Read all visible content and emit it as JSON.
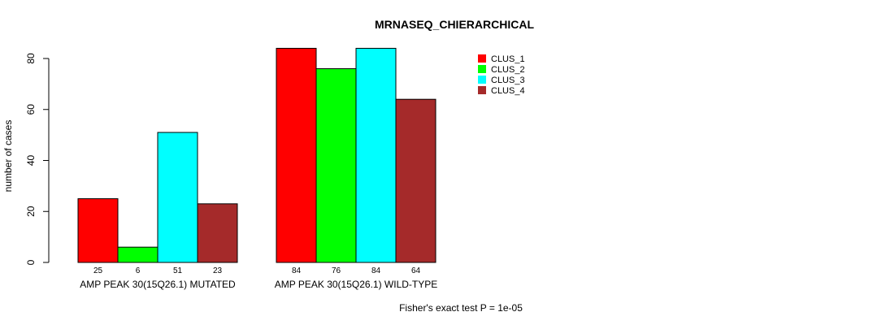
{
  "chart_data": {
    "type": "bar",
    "title": "MRNASEQ_CHIERARCHICAL",
    "ylabel": "number of cases",
    "xlabel": "",
    "ylim": [
      0,
      80
    ],
    "yticks": [
      "0",
      "20",
      "40",
      "60",
      "80"
    ],
    "categories": [
      "AMP PEAK 30(15Q26.1) MUTATED",
      "AMP PEAK 30(15Q26.1) WILD-TYPE"
    ],
    "series": [
      {
        "name": "CLUS_1",
        "color": "#ff0000",
        "values": [
          25,
          84
        ]
      },
      {
        "name": "CLUS_2",
        "color": "#00ff00",
        "values": [
          6,
          76
        ]
      },
      {
        "name": "CLUS_3",
        "color": "#00ffff",
        "values": [
          51,
          84
        ]
      },
      {
        "name": "CLUS_4",
        "color": "#a52a2a",
        "values": [
          23,
          64
        ]
      }
    ],
    "legend_position": "top-right",
    "annotation": "Fisher's exact test P = 1e-05"
  }
}
